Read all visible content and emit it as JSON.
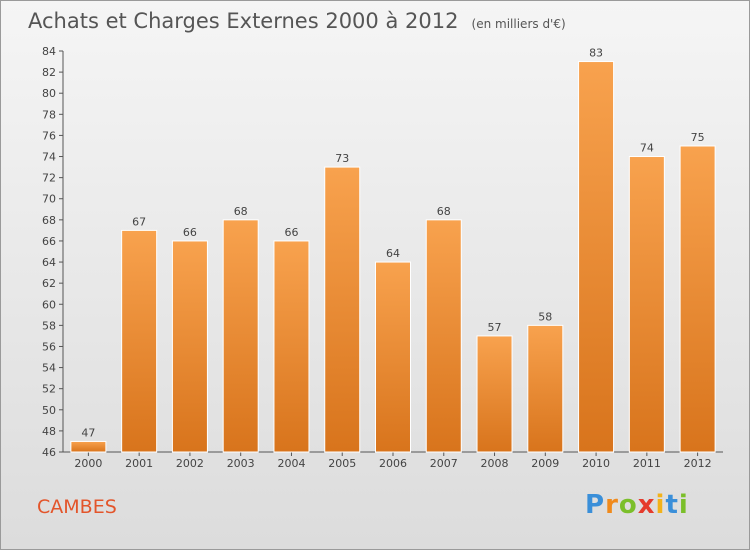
{
  "title": "Achats et Charges Externes 2000 à 2012",
  "unit_note": "(en milliers d'€)",
  "commune": "CAMBES",
  "logo": {
    "text": "Proxiti",
    "colors": [
      "#3a8fd9",
      "#f08a1c",
      "#7bbf2a",
      "#e53b2c",
      "#f2b21a",
      "#3a8fd9",
      "#7bbf2a"
    ]
  },
  "colors": {
    "bar_light": "#f8a24e",
    "bar_dark": "#d8741c",
    "title": "#555555",
    "commune": "#e3552b"
  },
  "chart_data": {
    "type": "bar",
    "categories": [
      "2000",
      "2001",
      "2002",
      "2003",
      "2004",
      "2005",
      "2006",
      "2007",
      "2008",
      "2009",
      "2010",
      "2011",
      "2012"
    ],
    "values": [
      47,
      67,
      66,
      68,
      66,
      73,
      64,
      68,
      57,
      58,
      83,
      74,
      75
    ],
    "ylim": [
      46,
      84
    ],
    "yticks": [
      46,
      48,
      50,
      52,
      54,
      56,
      58,
      60,
      62,
      64,
      66,
      68,
      70,
      72,
      74,
      76,
      78,
      80,
      82,
      84
    ],
    "grid": false,
    "data_labels": true
  }
}
